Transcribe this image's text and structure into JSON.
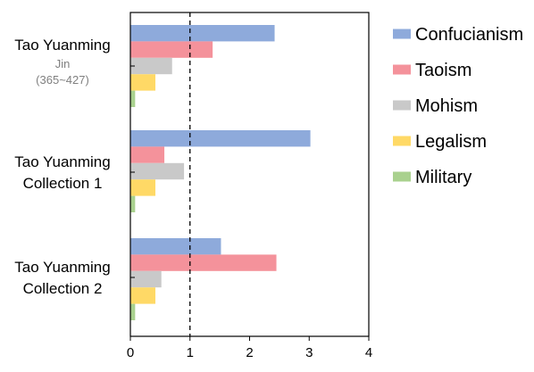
{
  "chart_data": {
    "type": "bar",
    "orientation": "horizontal",
    "categories": [
      {
        "lines": [
          "Tao Yuanming"
        ],
        "sublines": [
          "Jin",
          "(365~427)"
        ]
      },
      {
        "lines": [
          "Tao Yuanming",
          "Collection 1"
        ],
        "sublines": []
      },
      {
        "lines": [
          "Tao Yuanming",
          "Collection 2"
        ],
        "sublines": []
      }
    ],
    "series": [
      {
        "name": "Confucianism",
        "color": "#8eaadb",
        "values": [
          2.42,
          3.02,
          1.52
        ]
      },
      {
        "name": "Taoism",
        "color": "#f4929b",
        "values": [
          1.38,
          0.57,
          2.45
        ]
      },
      {
        "name": "Mohism",
        "color": "#c9c9c9",
        "values": [
          0.7,
          0.9,
          0.52
        ]
      },
      {
        "name": "Legalism",
        "color": "#ffd966",
        "values": [
          0.42,
          0.42,
          0.42
        ]
      },
      {
        "name": "Military",
        "color": "#a9d18e",
        "values": [
          0.08,
          0.08,
          0.08
        ]
      }
    ],
    "xlim": [
      0,
      4
    ],
    "xticks": [
      "0",
      "1",
      "2",
      "3",
      "4"
    ],
    "reference_line": {
      "x": 1,
      "style": "dashed"
    },
    "legend_position": "right",
    "grid": false,
    "title": "",
    "xlabel": "",
    "ylabel": ""
  }
}
